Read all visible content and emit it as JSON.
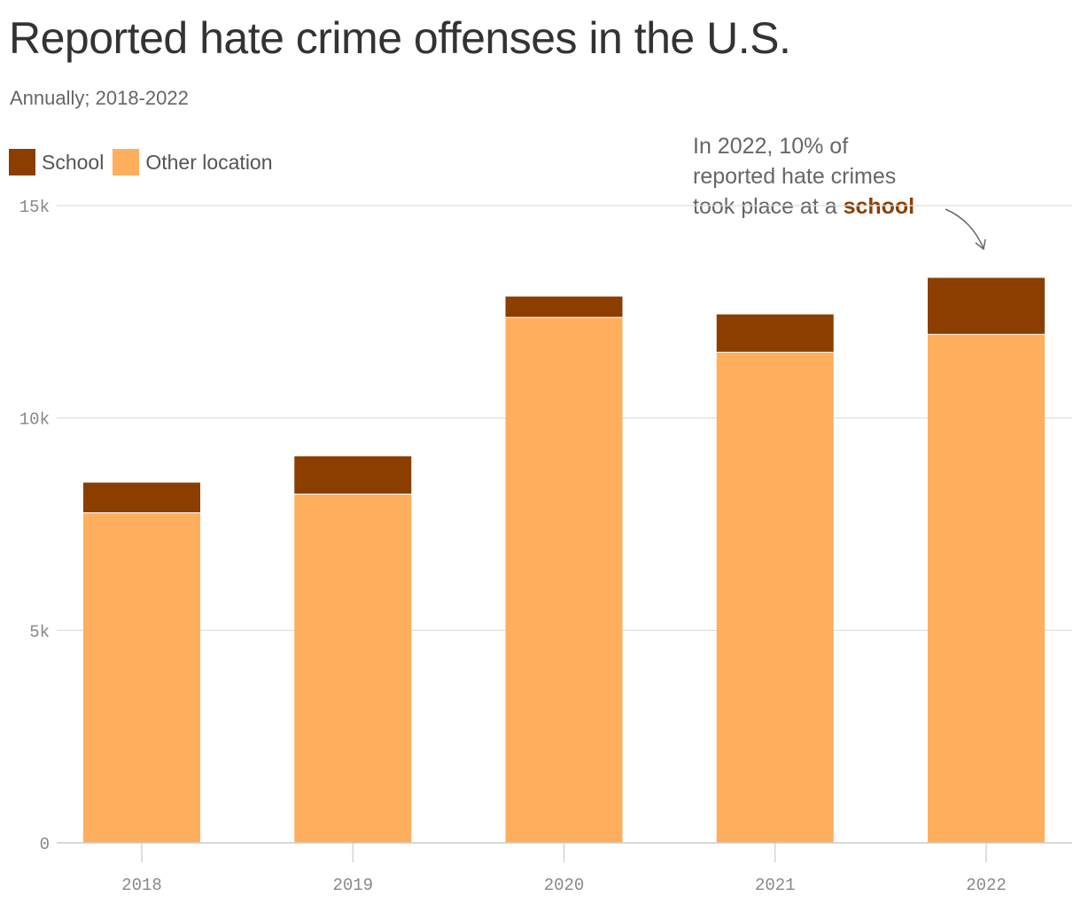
{
  "title": "Reported hate crime offenses in the U.S.",
  "subtitle": "Annually; 2018-2022",
  "legend": [
    {
      "label": "School",
      "color": "#8b3e00"
    },
    {
      "label": "Other location",
      "color": "#ffae5e"
    }
  ],
  "annotation": {
    "line1": "In 2022, 10% of",
    "line2": "reported hate crimes",
    "line3_prefix": "took place at a ",
    "line3_highlight": "school"
  },
  "chart_data": {
    "type": "bar",
    "stacked": true,
    "categories": [
      "2018",
      "2019",
      "2020",
      "2021",
      "2022"
    ],
    "series": [
      {
        "name": "Other location",
        "values": [
          7780,
          8220,
          12380,
          11560,
          11980
        ],
        "color": "#ffae5e"
      },
      {
        "name": "School",
        "values": [
          700,
          880,
          480,
          880,
          1320
        ],
        "color": "#8b3e00"
      }
    ],
    "ylim": [
      0,
      15000
    ],
    "yticks": [
      {
        "value": 0,
        "label": "0"
      },
      {
        "value": 5000,
        "label": "5k"
      },
      {
        "value": 10000,
        "label": "10k"
      },
      {
        "value": 15000,
        "label": "15k"
      }
    ],
    "grid": true
  }
}
